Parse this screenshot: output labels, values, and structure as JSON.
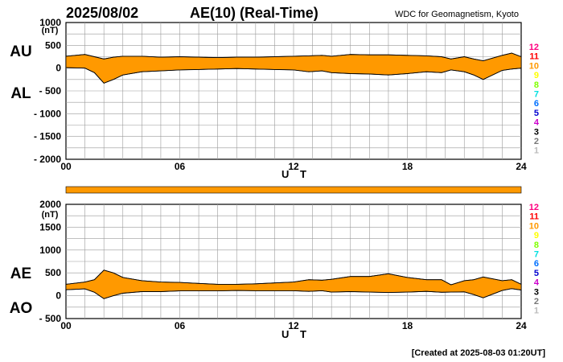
{
  "header": {
    "date": "2025/08/02",
    "title": "AE(10) (Real-Time)",
    "source": "WDC for Geomagnetism, Kyoto"
  },
  "footer": {
    "created": "[Created at 2025-08-03 01:20UT]"
  },
  "legend": {
    "items": [
      {
        "label": "12",
        "color": "#ff0080"
      },
      {
        "label": "11",
        "color": "#ff0000"
      },
      {
        "label": "10",
        "color": "#ff9900"
      },
      {
        "label": "9",
        "color": "#ffff00"
      },
      {
        "label": "8",
        "color": "#80ff00"
      },
      {
        "label": "7",
        "color": "#00e0e0"
      },
      {
        "label": "6",
        "color": "#0070ff"
      },
      {
        "label": "5",
        "color": "#0000d0"
      },
      {
        "label": "4",
        "color": "#cc00cc"
      },
      {
        "label": "3",
        "color": "#000000"
      },
      {
        "label": "2",
        "color": "#777777"
      },
      {
        "label": "1",
        "color": "#bbbbbb"
      }
    ]
  },
  "status_bar": {
    "color": "#ff9900"
  },
  "chart_data": [
    {
      "type": "area",
      "name": "AU/AL",
      "upper_label": "AU",
      "lower_label": "AL",
      "unit": "(nT)",
      "ylim": [
        -2000,
        1000
      ],
      "yticks": [
        -2000,
        -1500,
        -1000,
        -500,
        0,
        500,
        1000
      ],
      "ytick_labels": [
        "- 2000",
        "- 1500",
        "- 1000",
        "- 500",
        "0",
        "500",
        "1000"
      ],
      "xlim": [
        0,
        24
      ],
      "xticks": [
        0,
        6,
        12,
        18,
        24
      ],
      "xtick_labels": [
        "00",
        "06",
        "12",
        "18",
        "24"
      ],
      "xlabel": "U T",
      "fill_color": "#ff9900",
      "series": [
        {
          "name": "AU",
          "x": [
            0,
            1,
            1.5,
            2,
            2.5,
            3,
            4,
            5,
            6,
            7,
            8,
            9,
            10,
            11,
            12,
            12.8,
            13.5,
            14,
            15,
            16,
            17,
            18,
            19,
            19.8,
            20.3,
            21,
            21.5,
            22,
            23,
            23.5,
            24
          ],
          "values": [
            260,
            300,
            250,
            200,
            240,
            260,
            260,
            240,
            250,
            240,
            230,
            240,
            240,
            250,
            260,
            270,
            280,
            260,
            300,
            290,
            290,
            280,
            270,
            250,
            200,
            250,
            200,
            160,
            280,
            330,
            250
          ]
        },
        {
          "name": "AL",
          "x": [
            0,
            1,
            1.5,
            2,
            2.5,
            3,
            4,
            5,
            6,
            7,
            8,
            9,
            10,
            11,
            12,
            12.8,
            13.5,
            14,
            15,
            16,
            17,
            18,
            19,
            19.8,
            20.3,
            21,
            21.5,
            22,
            23,
            23.5,
            24
          ],
          "values": [
            10,
            0,
            -100,
            -330,
            -250,
            -150,
            -80,
            -60,
            -40,
            -30,
            -20,
            -10,
            -20,
            -30,
            -40,
            -80,
            -60,
            -100,
            -120,
            -130,
            -150,
            -120,
            -80,
            -100,
            -40,
            -80,
            -150,
            -250,
            -50,
            -20,
            0
          ]
        }
      ]
    },
    {
      "type": "area",
      "name": "AE/AO",
      "upper_label": "AE",
      "lower_label": "AO",
      "unit": "(nT)",
      "ylim": [
        -500,
        2000
      ],
      "yticks": [
        -500,
        0,
        500,
        1000,
        1500,
        2000
      ],
      "ytick_labels": [
        "- 500",
        "0",
        "500",
        "1000",
        "1500",
        "2000"
      ],
      "xlim": [
        0,
        24
      ],
      "xticks": [
        0,
        6,
        12,
        18,
        24
      ],
      "xtick_labels": [
        "00",
        "06",
        "12",
        "18",
        "24"
      ],
      "xlabel": "U T",
      "fill_color": "#ff9900",
      "series": [
        {
          "name": "AE",
          "x": [
            0,
            1,
            1.5,
            2,
            2.5,
            3,
            4,
            5,
            6,
            7,
            8,
            9,
            10,
            11,
            12,
            12.8,
            13.5,
            14,
            15,
            16,
            17,
            18,
            19,
            19.8,
            20.3,
            21,
            21.5,
            22,
            23,
            23.5,
            24
          ],
          "values": [
            250,
            300,
            350,
            560,
            500,
            400,
            330,
            300,
            290,
            270,
            250,
            250,
            260,
            280,
            300,
            350,
            340,
            360,
            420,
            420,
            480,
            400,
            350,
            350,
            240,
            330,
            350,
            410,
            330,
            350,
            250
          ]
        },
        {
          "name": "AO",
          "x": [
            0,
            1,
            1.5,
            2,
            2.5,
            3,
            4,
            5,
            6,
            7,
            8,
            9,
            10,
            11,
            12,
            12.8,
            13.5,
            14,
            15,
            16,
            17,
            18,
            19,
            19.8,
            20.3,
            21,
            21.5,
            22,
            23,
            23.5,
            24
          ],
          "values": [
            130,
            150,
            75,
            -65,
            0,
            55,
            90,
            90,
            105,
            105,
            105,
            115,
            110,
            110,
            110,
            95,
            110,
            80,
            90,
            80,
            70,
            80,
            95,
            75,
            80,
            85,
            25,
            -45,
            115,
            155,
            125
          ]
        }
      ]
    }
  ]
}
